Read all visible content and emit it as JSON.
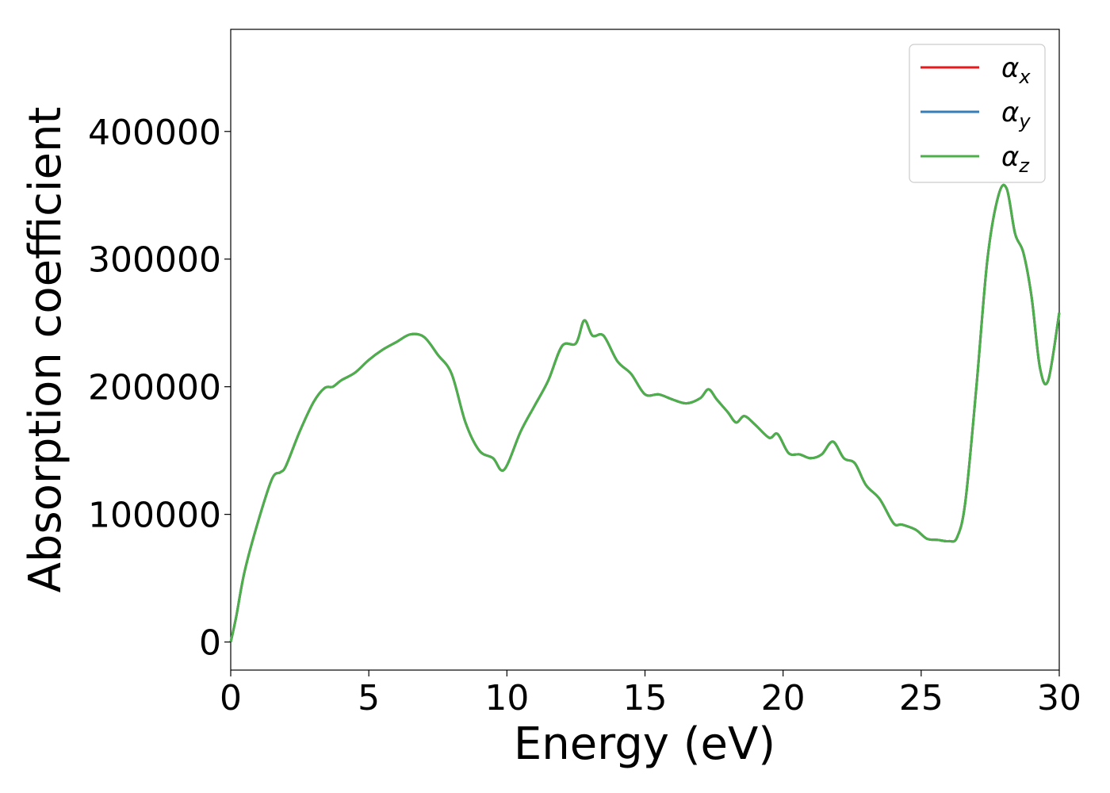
{
  "chart_data": {
    "type": "line",
    "title": "",
    "xlabel": "Energy (eV)",
    "ylabel": "Absorption coefficient",
    "xlim": [
      0,
      30
    ],
    "ylim": [
      -22000,
      480000
    ],
    "xticks": [
      0,
      5,
      10,
      15,
      20,
      25,
      30
    ],
    "yticks": [
      0,
      100000,
      200000,
      300000,
      400000
    ],
    "xtick_labels": [
      "0",
      "5",
      "10",
      "15",
      "20",
      "25",
      "30"
    ],
    "ytick_labels": [
      "0",
      "100000",
      "200000",
      "300000",
      "400000"
    ],
    "grid": false,
    "legend_position": "top-right",
    "series": [
      {
        "name": "αx",
        "symbol": "α",
        "subscript": "x",
        "color": "#e41a1c",
        "x": [
          0,
          0.2,
          0.5,
          1,
          1.5,
          1.8,
          2,
          2.5,
          3,
          3.4,
          3.7,
          4,
          4.5,
          5,
          5.5,
          6,
          6.5,
          7,
          7.5,
          8,
          8.5,
          9,
          9.5,
          9.9,
          10.5,
          11,
          11.5,
          12,
          12.5,
          12.8,
          13.1,
          13.5,
          14,
          14.5,
          15,
          15.5,
          16,
          16.5,
          17,
          17.3,
          17.6,
          18,
          18.3,
          18.6,
          19,
          19.5,
          19.8,
          20.2,
          20.6,
          21,
          21.4,
          21.8,
          22.2,
          22.6,
          23,
          23.5,
          24,
          24.3,
          24.8,
          25.2,
          25.6,
          26,
          26.3,
          26.6,
          27,
          27.4,
          27.8,
          28.1,
          28.4,
          28.7,
          29,
          29.3,
          29.6,
          30
        ],
        "y": [
          0,
          20000,
          55000,
          95000,
          128000,
          133000,
          138000,
          165000,
          188000,
          199000,
          200000,
          205000,
          211000,
          221000,
          229000,
          235000,
          241000,
          239000,
          225000,
          210000,
          172000,
          150000,
          144000,
          135000,
          165000,
          185000,
          205000,
          232000,
          234000,
          252000,
          240000,
          240000,
          220000,
          210000,
          194000,
          194000,
          190000,
          187000,
          191000,
          198000,
          190000,
          180000,
          172000,
          177000,
          170000,
          160000,
          163000,
          148000,
          147000,
          144000,
          147000,
          157000,
          144000,
          140000,
          123000,
          112000,
          93000,
          92000,
          88000,
          81000,
          80000,
          79000,
          82000,
          110000,
          200000,
          300000,
          350000,
          355000,
          320000,
          305000,
          270000,
          215000,
          205000,
          258000
        ]
      },
      {
        "name": "αy",
        "symbol": "α",
        "subscript": "y",
        "color": "#377eb8",
        "x": [
          0,
          0.2,
          0.5,
          1,
          1.5,
          1.8,
          2,
          2.5,
          3,
          3.4,
          3.7,
          4,
          4.5,
          5,
          5.5,
          6,
          6.5,
          7,
          7.5,
          8,
          8.5,
          9,
          9.5,
          9.9,
          10.5,
          11,
          11.5,
          12,
          12.5,
          12.8,
          13.1,
          13.5,
          14,
          14.5,
          15,
          15.5,
          16,
          16.5,
          17,
          17.3,
          17.6,
          18,
          18.3,
          18.6,
          19,
          19.5,
          19.8,
          20.2,
          20.6,
          21,
          21.4,
          21.8,
          22.2,
          22.6,
          23,
          23.5,
          24,
          24.3,
          24.8,
          25.2,
          25.6,
          26,
          26.3,
          26.6,
          27,
          27.4,
          27.8,
          28.1,
          28.4,
          28.7,
          29,
          29.3,
          29.6,
          30
        ],
        "y": [
          0,
          20000,
          55000,
          95000,
          128000,
          133000,
          138000,
          165000,
          188000,
          199000,
          200000,
          205000,
          211000,
          221000,
          229000,
          235000,
          241000,
          239000,
          225000,
          210000,
          172000,
          150000,
          144000,
          135000,
          165000,
          185000,
          205000,
          232000,
          234000,
          252000,
          240000,
          240000,
          220000,
          210000,
          194000,
          194000,
          190000,
          187000,
          191000,
          198000,
          190000,
          180000,
          172000,
          177000,
          170000,
          160000,
          163000,
          148000,
          147000,
          144000,
          147000,
          157000,
          144000,
          140000,
          123000,
          112000,
          93000,
          92000,
          88000,
          81000,
          80000,
          79000,
          82000,
          110000,
          200000,
          300000,
          350000,
          355000,
          320000,
          305000,
          270000,
          215000,
          205000,
          258000
        ]
      },
      {
        "name": "αz",
        "symbol": "α",
        "subscript": "z",
        "color": "#4daf4a",
        "x": [
          0,
          0.2,
          0.5,
          1,
          1.5,
          1.8,
          2,
          2.5,
          3,
          3.4,
          3.7,
          4,
          4.5,
          5,
          5.5,
          6,
          6.5,
          7,
          7.5,
          8,
          8.5,
          9,
          9.5,
          9.9,
          10.5,
          11,
          11.5,
          12,
          12.5,
          12.8,
          13.1,
          13.5,
          14,
          14.5,
          15,
          15.5,
          16,
          16.5,
          17,
          17.3,
          17.6,
          18,
          18.3,
          18.6,
          19,
          19.5,
          19.8,
          20.2,
          20.6,
          21,
          21.4,
          21.8,
          22.2,
          22.6,
          23,
          23.5,
          24,
          24.3,
          24.8,
          25.2,
          25.6,
          26,
          26.3,
          26.6,
          27,
          27.4,
          27.8,
          28.1,
          28.4,
          28.7,
          29,
          29.3,
          29.6,
          30
        ],
        "y": [
          0,
          20000,
          55000,
          95000,
          128000,
          133000,
          138000,
          165000,
          188000,
          199000,
          200000,
          205000,
          211000,
          221000,
          229000,
          235000,
          241000,
          239000,
          225000,
          210000,
          172000,
          150000,
          144000,
          135000,
          165000,
          185000,
          205000,
          232000,
          234000,
          252000,
          240000,
          240000,
          220000,
          210000,
          194000,
          194000,
          190000,
          187000,
          191000,
          198000,
          190000,
          180000,
          172000,
          177000,
          170000,
          160000,
          163000,
          148000,
          147000,
          144000,
          147000,
          157000,
          144000,
          140000,
          123000,
          112000,
          93000,
          92000,
          88000,
          81000,
          80000,
          79000,
          82000,
          110000,
          200000,
          300000,
          350000,
          355000,
          320000,
          305000,
          270000,
          215000,
          205000,
          258000
        ]
      }
    ]
  }
}
